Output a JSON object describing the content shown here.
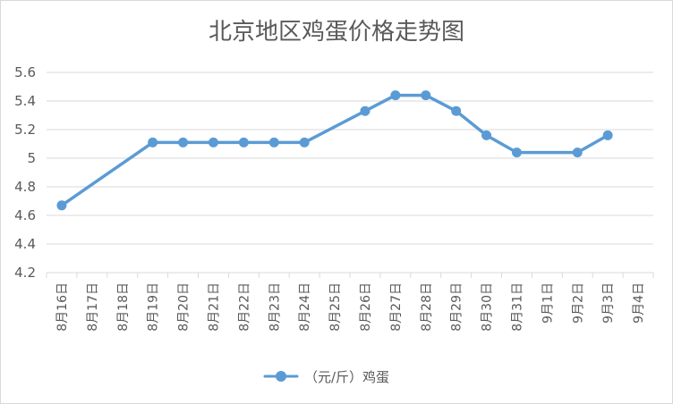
{
  "chart_data": {
    "type": "line",
    "title": "北京地区鸡蛋价格走势图",
    "xlabel": "",
    "ylabel": "",
    "categories": [
      "8月16日",
      "8月17日",
      "8月18日",
      "8月19日",
      "8月20日",
      "8月21日",
      "8月22日",
      "8月23日",
      "8月24日",
      "8月25日",
      "8月26日",
      "8月27日",
      "8月28日",
      "8月29日",
      "8月30日",
      "8月31日",
      "9月1日",
      "9月2日",
      "9月3日",
      "9月4日"
    ],
    "series": [
      {
        "name": "（元/斤）鸡蛋",
        "color": "#5b9bd5",
        "values": [
          4.67,
          null,
          null,
          5.11,
          5.11,
          5.11,
          5.11,
          5.11,
          5.11,
          null,
          5.33,
          5.44,
          5.44,
          5.33,
          5.16,
          5.04,
          null,
          5.04,
          5.16,
          null
        ]
      }
    ],
    "ylim": [
      4.2,
      5.6
    ],
    "yticks": [
      "4.2",
      "4.4",
      "4.6",
      "4.8",
      "5",
      "5.2",
      "5.4",
      "5.6"
    ],
    "grid": true,
    "legend_position": "bottom"
  }
}
